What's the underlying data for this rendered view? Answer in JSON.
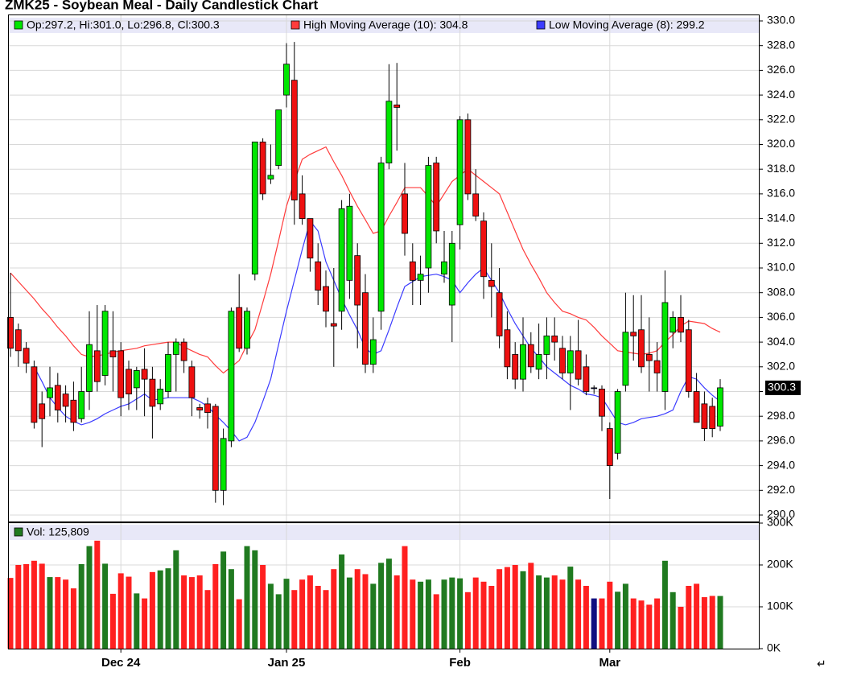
{
  "chart_data": [
    {
      "type": "candlestick",
      "title": "ZMK25 - Soybean Meal - Daily Candlestick Chart",
      "ohlc_label": "Op:297.2, Hi:301.0, Lo:296.8, Cl:300.3",
      "categories": [
        null,
        null,
        null,
        null,
        null,
        null,
        null,
        null,
        null,
        null,
        null,
        null,
        null,
        null,
        "Dec 24",
        null,
        null,
        null,
        null,
        null,
        null,
        null,
        null,
        null,
        null,
        null,
        null,
        null,
        null,
        null,
        null,
        null,
        null,
        null,
        null,
        "Jan 25",
        null,
        null,
        null,
        null,
        null,
        null,
        null,
        null,
        null,
        null,
        null,
        null,
        null,
        null,
        null,
        null,
        null,
        null,
        null,
        null,
        null,
        "Feb",
        null,
        null,
        null,
        null,
        null,
        null,
        null,
        null,
        null,
        null,
        null,
        null,
        null,
        null,
        null,
        null,
        null,
        null,
        "Mar",
        null,
        null,
        null,
        null,
        null,
        null,
        null,
        null,
        null,
        null,
        null,
        null,
        null,
        null
      ],
      "open": [
        306,
        305,
        303.5,
        302,
        299,
        299.5,
        300.5,
        299.8,
        299.3,
        297.8,
        300,
        303.3,
        301.3,
        303.3,
        303.3,
        301.8,
        300.3,
        301.8,
        301,
        299,
        300,
        303,
        304,
        302,
        298.7,
        299,
        298.8,
        292,
        296,
        306.8,
        303.5,
        309.5,
        320.2,
        317.2,
        318.3,
        324,
        325.2,
        316,
        314,
        310.5,
        308.5,
        305.5,
        306.5,
        309,
        311,
        308,
        302.2,
        306.5,
        318.5,
        323.2,
        316,
        310.5,
        309,
        310,
        318.5,
        309.5,
        307,
        313.5,
        322,
        316,
        313.8,
        309,
        308,
        305,
        303,
        301,
        303.8,
        301.8,
        303,
        304.5,
        303.5,
        301.5,
        303.3,
        302,
        300.3,
        300.2,
        297,
        295,
        300.5,
        304.8,
        305,
        303,
        302.5,
        300,
        304.8,
        306,
        305,
        300,
        299,
        298.8,
        297.2
      ],
      "high": [
        309.6,
        305.5,
        304,
        302.5,
        300,
        302,
        301.5,
        300.5,
        300.8,
        302,
        306.5,
        307,
        307,
        306.5,
        304,
        302.5,
        302,
        303.5,
        302,
        301,
        304,
        304.3,
        304.3,
        302.5,
        299,
        299.5,
        299,
        297,
        306.8,
        309.5,
        306.8,
        320.2,
        320.5,
        320,
        322.8,
        328.2,
        328.3,
        317.5,
        314,
        312,
        309.8,
        310,
        315.5,
        316,
        312,
        309.5,
        306,
        319,
        326.5,
        326.6,
        318.5,
        312,
        311,
        319,
        319,
        313,
        313,
        322.3,
        322.5,
        318,
        314.5,
        312,
        310,
        306.5,
        304,
        306,
        304.8,
        305.5,
        306,
        306,
        304.5,
        304.5,
        305.8,
        303,
        300.5,
        300.5,
        297.5,
        300.2,
        308,
        307.8,
        307.8,
        306,
        304,
        309.8,
        306.5,
        307.8,
        305.8,
        301.5,
        300,
        299.5,
        301
      ],
      "low": [
        302.8,
        302,
        301.5,
        297,
        295.5,
        298,
        297.5,
        297.5,
        296.8,
        297.5,
        298.5,
        300,
        300.5,
        300,
        298,
        298.5,
        298.5,
        298,
        296.2,
        298.5,
        299.5,
        300,
        301.5,
        298,
        297.8,
        297,
        291,
        290.8,
        295.5,
        303.2,
        303,
        309,
        315.5,
        316.8,
        318,
        323,
        313.5,
        313.5,
        309.7,
        307,
        305.2,
        302,
        305,
        307.5,
        303.5,
        301.5,
        301.5,
        305,
        318,
        319.5,
        311,
        307,
        307,
        308,
        312,
        308.8,
        304,
        311.5,
        315.5,
        313.8,
        307.5,
        306,
        303.5,
        301,
        300.2,
        300,
        301.5,
        301,
        301,
        302.5,
        301,
        298.5,
        300.5,
        299.7,
        299.8,
        296.8,
        291.3,
        294.5,
        300,
        302.5,
        301.5,
        300,
        300,
        298.5,
        303.5,
        304,
        299.5,
        297.5,
        296,
        296.3,
        296.8
      ],
      "close": [
        303.5,
        303.3,
        302.3,
        297.5,
        297.8,
        300.3,
        298.5,
        298.8,
        297.5,
        300,
        303.8,
        300.8,
        306.5,
        302.8,
        299.5,
        299.8,
        301.7,
        301,
        298.8,
        300.2,
        303,
        304,
        302.5,
        299.5,
        298.5,
        298.3,
        292,
        296.2,
        306.5,
        303.5,
        306.5,
        320.2,
        316,
        317.5,
        322.8,
        326.5,
        315.5,
        314,
        310.8,
        308.2,
        306.5,
        305.3,
        314.8,
        315,
        307,
        302.2,
        304.2,
        318.5,
        323.5,
        323,
        312.8,
        309,
        309.5,
        318.3,
        313,
        310.5,
        312,
        322,
        316,
        314.2,
        309.3,
        308.5,
        304.5,
        302,
        301,
        303.8,
        302,
        303,
        304.5,
        304,
        301.5,
        303.3,
        301,
        300,
        300.3,
        298,
        294,
        300,
        304.8,
        304.5,
        302,
        302.5,
        301.5,
        307.2,
        306,
        304.8,
        300,
        297.5,
        297,
        297,
        300.3
      ],
      "up_color": "#00e600",
      "down_color": "#ee1111",
      "unchanged_color": "#1010a0",
      "series": [
        {
          "name": "High Moving Average (10): 304.8",
          "color": "#ff3b3b",
          "values": [
            309.6,
            308.9,
            308.2,
            307.5,
            306.7,
            306,
            305.2,
            304.5,
            303.7,
            303,
            302.8,
            302.9,
            303,
            303.2,
            303.3,
            303.4,
            303.5,
            303.7,
            303.8,
            303.9,
            304,
            304,
            303.6,
            303.3,
            303,
            302.8,
            302.1,
            301.5,
            302,
            302.5,
            303.8,
            305,
            307.2,
            309.5,
            312.2,
            315,
            317,
            318.8,
            319.2,
            319.5,
            319.8,
            318.6,
            317.5,
            316.2,
            315,
            313.9,
            312.8,
            313,
            314.2,
            315.3,
            316.5,
            316.5,
            316.5,
            315.8,
            315,
            316,
            317,
            317.5,
            318,
            317.5,
            317,
            316.5,
            316,
            314.5,
            313,
            311.5,
            310.3,
            309.2,
            308,
            307.2,
            306.5,
            306.3,
            306,
            305.8,
            305.2,
            304.5,
            303.9,
            303.3,
            303.2,
            303.1,
            303,
            303.1,
            303.3,
            304,
            304.6,
            305.3,
            305.7,
            305.6,
            305.5,
            305.1,
            304.8
          ]
        },
        {
          "name": "Low Moving Average (8): 299.2",
          "color": "#3b3bff",
          "values": [
            null,
            null,
            null,
            302,
            300.8,
            299.5,
            298.7,
            298,
            297.6,
            297.3,
            297.5,
            297.8,
            298.2,
            298.5,
            298.8,
            299,
            299.4,
            299.8,
            299.3,
            299.4,
            299.5,
            299.5,
            299.5,
            299.5,
            299.2,
            298.8,
            298.1,
            297.5,
            296.8,
            296,
            296.3,
            297.5,
            299.2,
            301,
            303.8,
            306.5,
            309,
            311.5,
            313.8,
            313,
            310.5,
            309,
            307.5,
            306.2,
            305,
            303.5,
            303,
            303.3,
            305,
            306.8,
            308.5,
            308.9,
            309.3,
            309.4,
            309.5,
            309.3,
            309,
            308,
            308.8,
            309.5,
            310,
            309,
            308,
            306.7,
            305.5,
            304.5,
            303.5,
            302.8,
            302,
            301.5,
            301,
            300.5,
            300.2,
            299.8,
            299.7,
            299.5,
            298.5,
            297.5,
            297.3,
            297.5,
            297.8,
            297.9,
            298,
            298.2,
            298.5,
            300,
            301.2,
            301,
            300.3,
            299.7,
            299.2
          ]
        }
      ],
      "ylim": [
        290,
        330
      ],
      "yticks": [
        {
          "value": 290,
          "label": "290.0"
        },
        {
          "value": 292,
          "label": "292.0"
        },
        {
          "value": 294,
          "label": "294.0"
        },
        {
          "value": 296,
          "label": "296.0"
        },
        {
          "value": 298,
          "label": "298.0"
        },
        {
          "value": 300,
          "label": "300.0"
        },
        {
          "value": 302,
          "label": "302.0"
        },
        {
          "value": 304,
          "label": "304.0"
        },
        {
          "value": 306,
          "label": "306.0"
        },
        {
          "value": 308,
          "label": "308.0"
        },
        {
          "value": 310,
          "label": "310.0"
        },
        {
          "value": 312,
          "label": "312.0"
        },
        {
          "value": 314,
          "label": "314.0"
        },
        {
          "value": 316,
          "label": "316.0"
        },
        {
          "value": 318,
          "label": "318.0"
        },
        {
          "value": 320,
          "label": "320.0"
        },
        {
          "value": 322,
          "label": "322.0"
        },
        {
          "value": 324,
          "label": "324.0"
        },
        {
          "value": 326,
          "label": "326.0"
        },
        {
          "value": 328,
          "label": "328.0"
        },
        {
          "value": 330,
          "label": "330.0"
        }
      ],
      "last_price": {
        "value": 300.3,
        "label": "300.3"
      },
      "grid": true
    },
    {
      "type": "bar",
      "legend": "Vol: 125,809",
      "values": [
        169000,
        200000,
        202000,
        210000,
        203000,
        171000,
        171000,
        165000,
        144000,
        202000,
        245000,
        258000,
        203000,
        131000,
        180000,
        172000,
        132000,
        120000,
        183000,
        187000,
        192000,
        235000,
        175000,
        171000,
        175000,
        140000,
        202000,
        232000,
        190000,
        118000,
        245000,
        235000,
        200000,
        155000,
        130000,
        167000,
        140000,
        165000,
        175000,
        150000,
        140000,
        190000,
        225000,
        170000,
        190000,
        178000,
        155000,
        205000,
        215000,
        175000,
        245000,
        165000,
        160000,
        165000,
        130000,
        165000,
        170000,
        168000,
        135000,
        170000,
        160000,
        150000,
        190000,
        195000,
        200000,
        185000,
        205000,
        175000,
        170000,
        175000,
        165000,
        196000,
        165000,
        150000,
        120000,
        120000,
        160000,
        136000,
        155000,
        120000,
        115000,
        105000,
        120000,
        210000,
        135000,
        100000,
        150000,
        155000,
        123000,
        126000,
        125809
      ],
      "up_color": "#207a20",
      "down_color": "#ff2020",
      "unchanged_color": "#101080",
      "legend_color": "#207a20",
      "ylim": [
        0,
        300000
      ],
      "yticks": [
        {
          "value": 0,
          "label": "0K"
        },
        {
          "value": 100000,
          "label": "100K"
        },
        {
          "value": 200000,
          "label": "200K"
        },
        {
          "value": 300000,
          "label": "300K"
        }
      ],
      "grid": true
    }
  ],
  "footer_mark": "↵"
}
